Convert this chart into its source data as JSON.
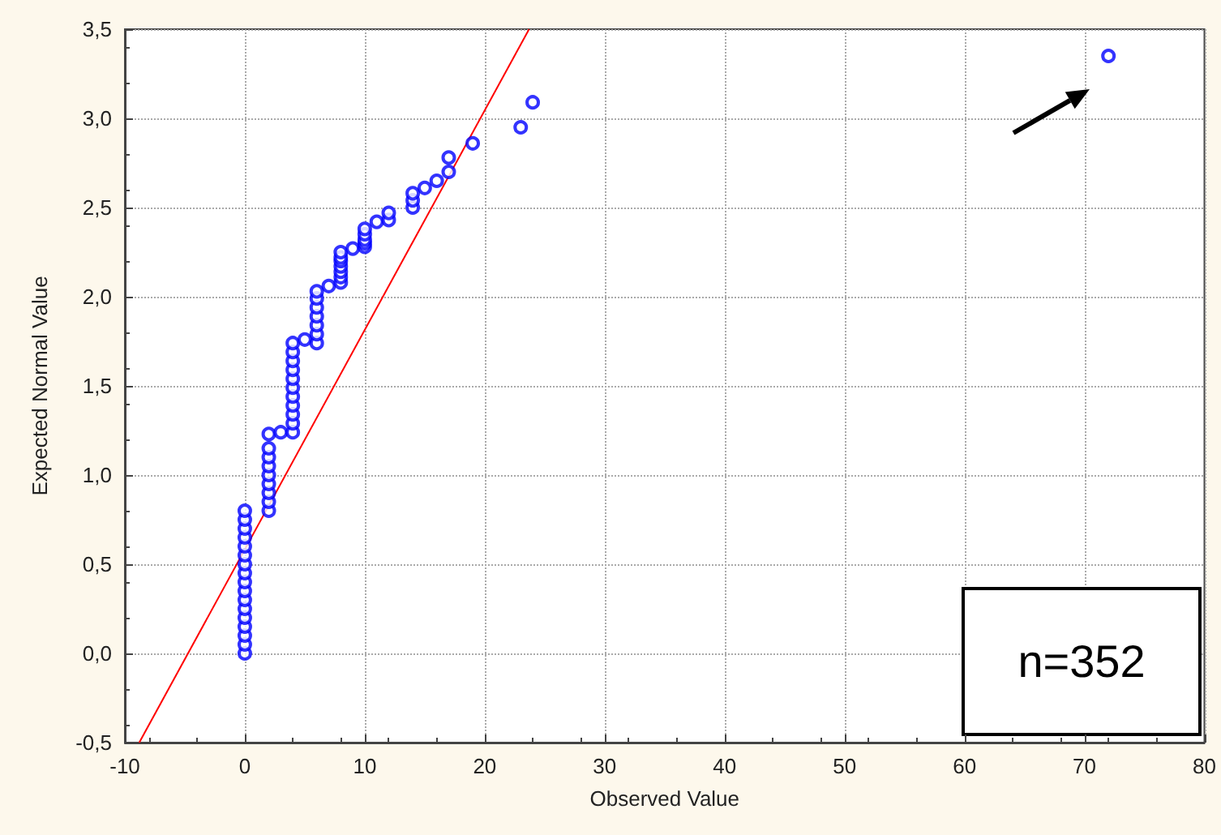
{
  "chart_data": {
    "type": "scatter",
    "xlabel": "Observed Value",
    "ylabel": "Expected Normal Value",
    "annotations": [
      "n=352"
    ],
    "series": [
      {
        "color": "#0000ff",
        "marker": "circle",
        "x": [
          0,
          0,
          0,
          0,
          0,
          0,
          0,
          0,
          0,
          0,
          0,
          0,
          0,
          0,
          0,
          0,
          0,
          2,
          2,
          2,
          2,
          2,
          2,
          2,
          2,
          2,
          3,
          4,
          4,
          4,
          4,
          4,
          4,
          4,
          4,
          4,
          4,
          4,
          5,
          6,
          6,
          6,
          6,
          6,
          6,
          6,
          7,
          8,
          8,
          8,
          8,
          8,
          8,
          8,
          9,
          10,
          10,
          10,
          10,
          10,
          11,
          12,
          12,
          14,
          14,
          14,
          15,
          16,
          17,
          17,
          19,
          23,
          24,
          72
        ],
        "values": [
          0,
          0.05,
          0.1,
          0.15,
          0.2,
          0.25,
          0.3,
          0.35,
          0.4,
          0.45,
          0.5,
          0.55,
          0.6,
          0.65,
          0.7,
          0.75,
          0.8,
          0.8,
          0.85,
          0.9,
          0.95,
          1.0,
          1.05,
          1.1,
          1.15,
          1.23,
          1.24,
          1.24,
          1.29,
          1.34,
          1.39,
          1.44,
          1.49,
          1.54,
          1.59,
          1.64,
          1.69,
          1.74,
          1.76,
          1.74,
          1.79,
          1.84,
          1.89,
          1.94,
          1.99,
          2.03,
          2.06,
          2.08,
          2.11,
          2.14,
          2.17,
          2.2,
          2.22,
          2.25,
          2.27,
          2.28,
          2.3,
          2.32,
          2.35,
          2.38,
          2.42,
          2.43,
          2.47,
          2.5,
          2.54,
          2.58,
          2.61,
          2.65,
          2.7,
          2.78,
          2.86,
          2.95,
          3.09,
          3.35
        ]
      },
      {
        "type": "line",
        "color": "#ff0000",
        "marker": "none",
        "x": [
          -8.8,
          23.7
        ],
        "values": [
          -0.5,
          3.5
        ]
      }
    ],
    "xlim": [
      -10,
      80
    ],
    "xticks": [
      -10,
      0,
      10,
      20,
      30,
      40,
      50,
      60,
      70,
      80
    ],
    "ylim": [
      -0.5,
      3.5
    ],
    "yticks": [
      {
        "value": -0.5,
        "label": "-0,5"
      },
      {
        "value": 0,
        "label": "0,0"
      },
      {
        "value": 0.5,
        "label": "0,5"
      },
      {
        "value": 1,
        "label": "1,0"
      },
      {
        "value": 1.5,
        "label": "1,5"
      },
      {
        "value": 2,
        "label": "2,0"
      },
      {
        "value": 2.5,
        "label": "2,5"
      },
      {
        "value": 3,
        "label": "3,0"
      },
      {
        "value": 3.5,
        "label": "3,5"
      }
    ],
    "grid": true
  }
}
